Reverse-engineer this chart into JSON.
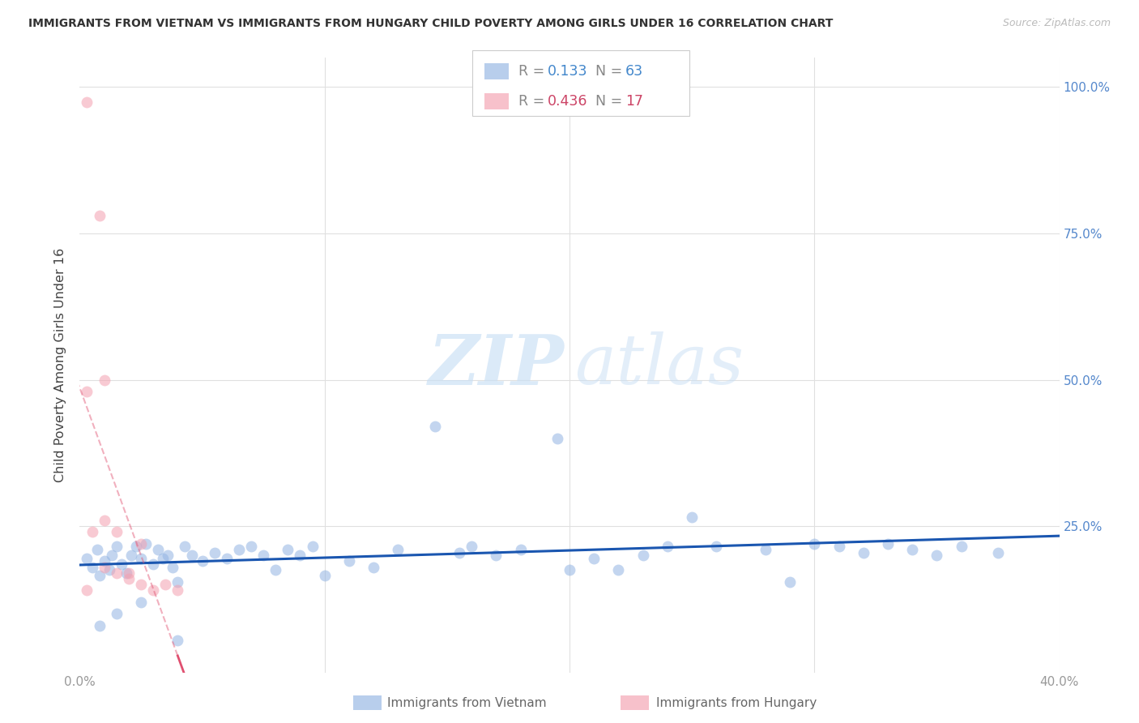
{
  "title": "IMMIGRANTS FROM VIETNAM VS IMMIGRANTS FROM HUNGARY CHILD POVERTY AMONG GIRLS UNDER 16 CORRELATION CHART",
  "source": "Source: ZipAtlas.com",
  "ylabel": "Child Poverty Among Girls Under 16",
  "xlim": [
    0.0,
    0.4
  ],
  "ylim": [
    0.0,
    1.05
  ],
  "vietnam_color": "#92b4e3",
  "hungary_color": "#f4a0b0",
  "vietnam_line_color": "#1a56b0",
  "hungary_line_color": "#e05070",
  "R_vietnam": 0.133,
  "N_vietnam": 63,
  "R_hungary": 0.436,
  "N_hungary": 17,
  "vietnam_scatter_x": [
    0.003,
    0.005,
    0.007,
    0.008,
    0.01,
    0.012,
    0.013,
    0.015,
    0.017,
    0.019,
    0.021,
    0.023,
    0.025,
    0.027,
    0.03,
    0.032,
    0.034,
    0.036,
    0.038,
    0.04,
    0.043,
    0.046,
    0.05,
    0.055,
    0.06,
    0.065,
    0.07,
    0.075,
    0.08,
    0.085,
    0.09,
    0.095,
    0.1,
    0.11,
    0.12,
    0.13,
    0.145,
    0.155,
    0.16,
    0.17,
    0.18,
    0.195,
    0.2,
    0.21,
    0.22,
    0.23,
    0.24,
    0.25,
    0.26,
    0.28,
    0.29,
    0.3,
    0.31,
    0.32,
    0.33,
    0.34,
    0.35,
    0.36,
    0.375,
    0.008,
    0.015,
    0.025,
    0.04
  ],
  "vietnam_scatter_y": [
    0.195,
    0.18,
    0.21,
    0.165,
    0.19,
    0.175,
    0.2,
    0.215,
    0.185,
    0.17,
    0.2,
    0.215,
    0.195,
    0.22,
    0.185,
    0.21,
    0.195,
    0.2,
    0.18,
    0.155,
    0.215,
    0.2,
    0.19,
    0.205,
    0.195,
    0.21,
    0.215,
    0.2,
    0.175,
    0.21,
    0.2,
    0.215,
    0.165,
    0.19,
    0.18,
    0.21,
    0.42,
    0.205,
    0.215,
    0.2,
    0.21,
    0.4,
    0.175,
    0.195,
    0.175,
    0.2,
    0.215,
    0.265,
    0.215,
    0.21,
    0.155,
    0.22,
    0.215,
    0.205,
    0.22,
    0.21,
    0.2,
    0.215,
    0.205,
    0.08,
    0.1,
    0.12,
    0.055
  ],
  "hungary_scatter_x": [
    0.003,
    0.008,
    0.003,
    0.005,
    0.01,
    0.015,
    0.02,
    0.025,
    0.01,
    0.015,
    0.02,
    0.025,
    0.03,
    0.035,
    0.04,
    0.003,
    0.01
  ],
  "hungary_scatter_y": [
    0.975,
    0.78,
    0.48,
    0.24,
    0.26,
    0.24,
    0.17,
    0.22,
    0.18,
    0.17,
    0.16,
    0.15,
    0.14,
    0.15,
    0.14,
    0.14,
    0.5
  ],
  "watermark_zip": "ZIP",
  "watermark_atlas": "atlas",
  "background_color": "#ffffff",
  "grid_color": "#e0e0e0"
}
